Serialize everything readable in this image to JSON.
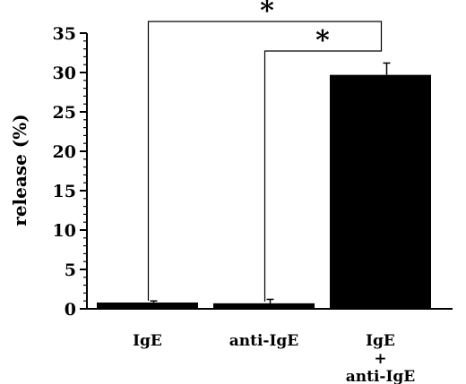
{
  "chart_data": {
    "type": "bar",
    "categories": [
      "IgE",
      "anti-IgE",
      "IgE\n+\nanti-IgE"
    ],
    "values": [
      0.8,
      0.7,
      29.7
    ],
    "errors": [
      0.2,
      0.5,
      1.5
    ],
    "ylabel": "release (%)",
    "ylim": [
      0,
      35
    ],
    "yticks": [
      0,
      5,
      10,
      15,
      20,
      25,
      30,
      35
    ],
    "bar_color": "#000000",
    "grid": false,
    "significance": [
      {
        "from": 0,
        "to": 2,
        "label": "*"
      },
      {
        "from": 1,
        "to": 2,
        "label": "*"
      }
    ]
  }
}
